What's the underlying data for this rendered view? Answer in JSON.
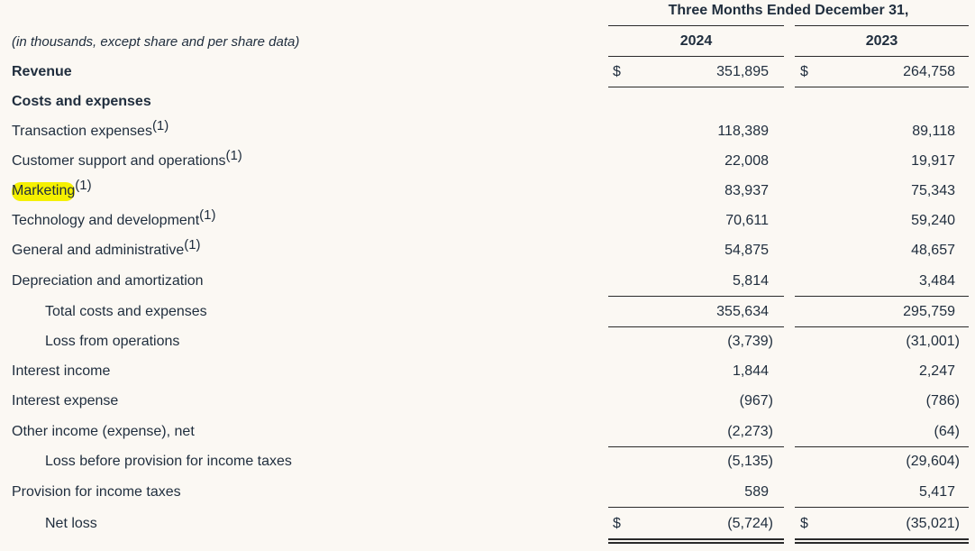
{
  "header": {
    "title": "Three Months Ended December 31,",
    "year_1": "2024",
    "year_2": "2023",
    "note": "(in thousands, except share and per share data)"
  },
  "currency_symbol": "$",
  "rows": [
    {
      "label": "Revenue",
      "sup": "",
      "v1": "351,895",
      "v2": "264,758"
    },
    {
      "label": "Costs and expenses",
      "sup": "",
      "v1": "",
      "v2": ""
    },
    {
      "label": "Transaction expenses",
      "sup": "(1)",
      "v1": "118,389",
      "v2": "89,118"
    },
    {
      "label": "Customer support and operations",
      "sup": "(1)",
      "v1": "22,008",
      "v2": "19,917"
    },
    {
      "label": "Marketing",
      "sup": "(1)",
      "v1": "83,937",
      "v2": "75,343"
    },
    {
      "label": "Technology and development",
      "sup": "(1)",
      "v1": "70,611",
      "v2": "59,240"
    },
    {
      "label": "General and administrative",
      "sup": "(1)",
      "v1": "54,875",
      "v2": "48,657"
    },
    {
      "label": "Depreciation and amortization",
      "sup": "",
      "v1": "5,814",
      "v2": "3,484"
    },
    {
      "label": "Total costs and expenses",
      "sup": "",
      "v1": "355,634",
      "v2": "295,759"
    },
    {
      "label": "Loss from operations",
      "sup": "",
      "v1": "(3,739)",
      "v2": "(31,001)"
    },
    {
      "label": "Interest income",
      "sup": "",
      "v1": "1,844",
      "v2": "2,247"
    },
    {
      "label": "Interest expense",
      "sup": "",
      "v1": "(967)",
      "v2": "(786)"
    },
    {
      "label": "Other income (expense), net",
      "sup": "",
      "v1": "(2,273)",
      "v2": "(64)"
    },
    {
      "label": "Loss before provision for income taxes",
      "sup": "",
      "v1": "(5,135)",
      "v2": "(29,604)"
    },
    {
      "label": "Provision for income taxes",
      "sup": "",
      "v1": "589",
      "v2": "5,417"
    },
    {
      "label": "Net loss",
      "sup": "",
      "v1": "(5,724)",
      "v2": "(35,021)"
    }
  ]
}
